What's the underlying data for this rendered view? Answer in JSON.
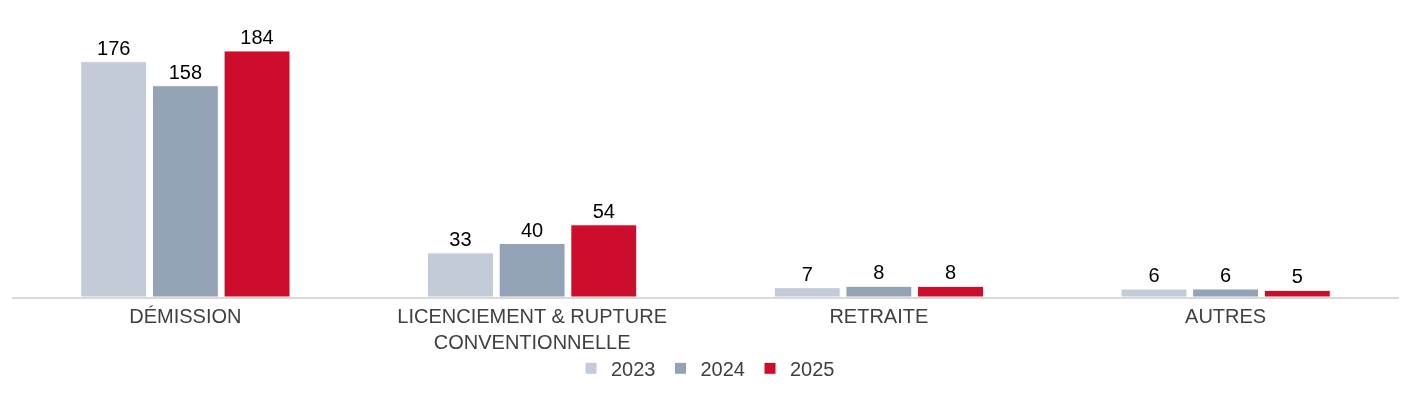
{
  "chart_data": {
    "type": "bar",
    "categories": [
      "DÉMISSION",
      "LICENCIEMENT & RUPTURE CONVENTIONNELLE",
      "RETRAITE",
      "AUTRES"
    ],
    "series": [
      {
        "name": "2023",
        "color": "#c3cbd8",
        "values": [
          176,
          33,
          7,
          6
        ]
      },
      {
        "name": "2024",
        "color": "#94a2b6",
        "values": [
          158,
          40,
          8,
          6
        ]
      },
      {
        "name": "2025",
        "color": "#cc0e2c",
        "values": [
          184,
          54,
          8,
          5
        ]
      }
    ],
    "data_labels": true,
    "legend": "bottom"
  }
}
